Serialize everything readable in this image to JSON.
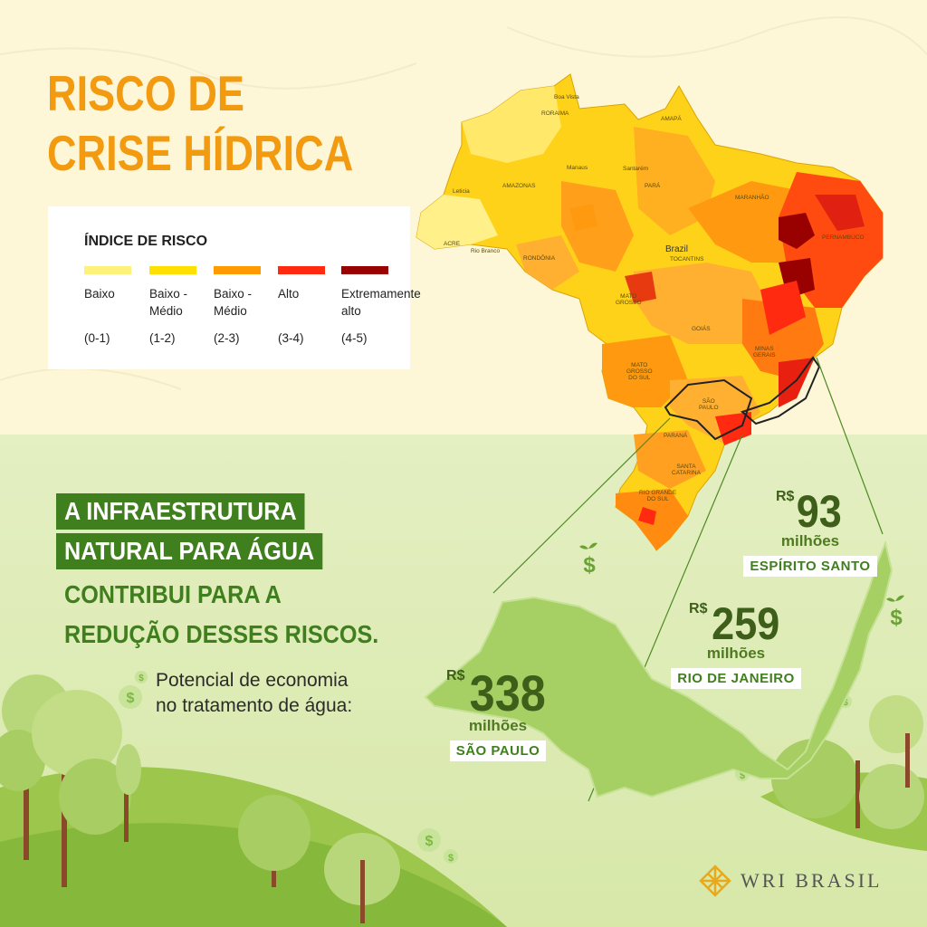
{
  "title": {
    "line1": "RISCO DE",
    "line2": "CRISE HÍDRICA"
  },
  "legend": {
    "title": "ÍNDICE DE RISCO",
    "items": [
      {
        "label": "Baixo",
        "range": "(0-1)",
        "color": "#fff27a"
      },
      {
        "label": "Baixo -\nMédio",
        "range": "(1-2)",
        "color": "#ffe000"
      },
      {
        "label": "Baixo -\nMédio",
        "range": "(2-3)",
        "color": "#ff9a00"
      },
      {
        "label": "Alto",
        "range": "(3-4)",
        "color": "#ff2a10"
      },
      {
        "label": "Extremamente\nalto",
        "range": "(4-5)",
        "color": "#990000"
      }
    ]
  },
  "map": {
    "labels": {
      "roraima": "RORAIMA",
      "amapa": "AMAPÁ",
      "amazonas": "AMAZONAS",
      "para": "PARÁ",
      "maranhao": "MARANHÃO",
      "acre": "ACRE",
      "rondonia": "RONDÔNIA",
      "mato_grosso": "MATO\nGROSSO",
      "tocantins": "TOCANTINS",
      "brazil": "Brazil",
      "goias": "GOIÁS",
      "minas": "MINAS\nGERAIS",
      "ms": "MATO\nGROSSO\nDO SUL",
      "sp": "SÃO\nPAULO",
      "parana": "PARANÁ",
      "sc": "SANTA\nCATARINA",
      "rs": "RIO GRANDE\nDO SUL",
      "pernambuco": "PERNAMBUCO",
      "manaus": "Manaus",
      "leticia": "Leticia",
      "rio_branco": "Rio Branco",
      "santarem": "Santarém",
      "boa_vista": "Boa Vista"
    }
  },
  "headline": {
    "highlight1": "A INFRAESTRUTURA",
    "highlight2": "NATURAL PARA ÁGUA",
    "line3": "CONTRIBUI PARA A",
    "line4": "REDUÇÃO DESSES RISCOS."
  },
  "potential": {
    "line1": "Potencial de economia",
    "line2": "no tratamento de água:"
  },
  "savings": [
    {
      "currency": "R$",
      "value": "338",
      "unit": "milhões",
      "state": "SÃO PAULO"
    },
    {
      "currency": "R$",
      "value": "259",
      "unit": "milhões",
      "state": "RIO DE JANEIRO"
    },
    {
      "currency": "R$",
      "value": "93",
      "unit": "milhões",
      "state": "ESPÍRITO SANTO"
    }
  ],
  "logo": {
    "text": "WRI BRASIL"
  },
  "icons": {
    "dollar": "dollar-sign-icon",
    "leaf": "leaf-icon",
    "tree": "tree-icon"
  },
  "colors": {
    "title": "#f29a10",
    "dark_green": "#3f7f1d",
    "value_green": "#3e5f1a",
    "top_bg": "#fdf7d8",
    "bottom_bg": "#dcebb5"
  }
}
